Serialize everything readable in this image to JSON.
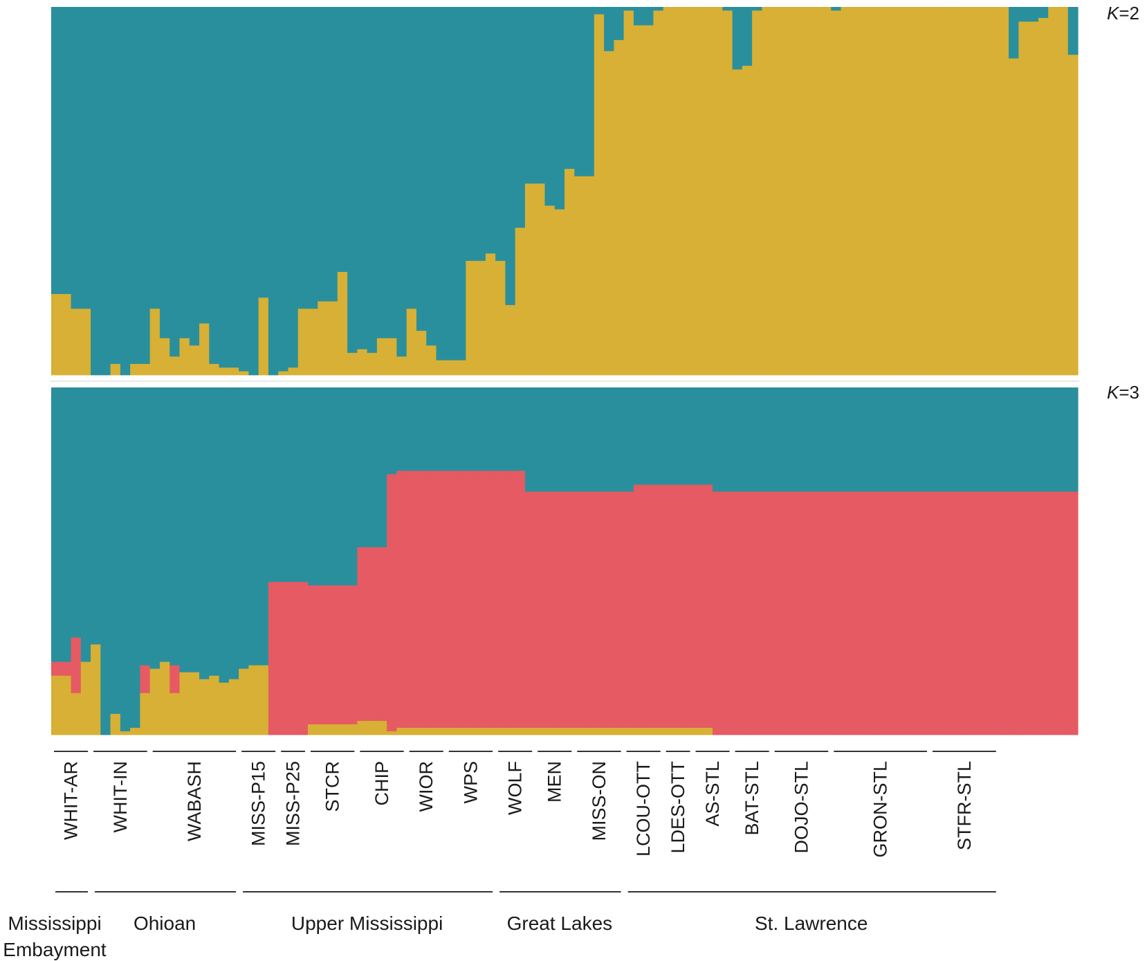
{
  "colors": {
    "cluster_blue": "#2a8f9c",
    "cluster_gold": "#d7b035",
    "cluster_red": "#e55a63",
    "separator": "#ffffff",
    "text": "#1a1a1a"
  },
  "chart_data": [
    {
      "type": "bar",
      "subtype": "stacked-proportion",
      "panel_label": {
        "prefix": "K",
        "suffix": "=2"
      },
      "ylim": [
        0,
        1
      ],
      "series": [
        {
          "color": "#2a8f9c",
          "values": [
            0.78,
            0.78,
            0.82,
            0.82,
            1.0,
            1.0,
            0.97,
            1.0,
            0.97,
            0.97,
            0.82,
            0.9,
            0.95,
            0.9,
            0.92,
            0.86,
            0.97,
            0.98,
            0.98,
            0.99,
            1.0,
            0.79,
            1.0,
            0.99,
            0.98,
            0.82,
            0.82,
            0.8,
            0.8,
            0.72,
            0.94,
            0.93,
            0.94,
            0.9,
            0.9,
            0.95,
            0.82,
            0.88,
            0.92,
            0.96,
            0.96,
            0.96,
            0.69,
            0.69,
            0.67,
            0.69,
            0.81,
            0.6,
            0.48,
            0.48,
            0.54,
            0.55,
            0.44,
            0.46,
            0.46,
            0.02,
            0.12,
            0.09,
            0.01,
            0.05,
            0.05,
            0.01,
            0.0,
            0.0,
            0.0,
            0.0,
            0.0,
            0.0,
            0.01,
            0.17,
            0.16,
            0.01,
            0.0,
            0.0,
            0.0,
            0.0,
            0.0,
            0.0,
            0.0,
            0.01,
            0.0,
            0.0,
            0.0,
            0.0,
            0.0,
            0.0,
            0.0,
            0.0,
            0.0,
            0.0,
            0.0,
            0.0,
            0.0,
            0.0,
            0.0,
            0.0,
            0.0,
            0.14,
            0.04,
            0.04,
            0.03,
            0.0,
            0.0,
            0.13
          ]
        },
        {
          "color": "#d7b035",
          "values": [
            0.22,
            0.22,
            0.18,
            0.18,
            0.0,
            0.0,
            0.03,
            0.0,
            0.03,
            0.03,
            0.18,
            0.1,
            0.05,
            0.1,
            0.08,
            0.14,
            0.03,
            0.02,
            0.02,
            0.01,
            0.0,
            0.21,
            0.0,
            0.01,
            0.02,
            0.18,
            0.18,
            0.2,
            0.2,
            0.28,
            0.06,
            0.07,
            0.06,
            0.1,
            0.1,
            0.05,
            0.18,
            0.12,
            0.08,
            0.04,
            0.04,
            0.04,
            0.31,
            0.31,
            0.33,
            0.31,
            0.19,
            0.4,
            0.52,
            0.52,
            0.46,
            0.45,
            0.56,
            0.54,
            0.54,
            0.98,
            0.88,
            0.91,
            0.99,
            0.95,
            0.95,
            0.99,
            1.0,
            1.0,
            1.0,
            1.0,
            1.0,
            1.0,
            0.99,
            0.83,
            0.84,
            0.99,
            1.0,
            1.0,
            1.0,
            1.0,
            1.0,
            1.0,
            1.0,
            0.99,
            1.0,
            1.0,
            1.0,
            1.0,
            1.0,
            1.0,
            1.0,
            1.0,
            1.0,
            1.0,
            1.0,
            1.0,
            1.0,
            1.0,
            1.0,
            1.0,
            1.0,
            0.86,
            0.96,
            0.96,
            0.97,
            1.0,
            1.0,
            0.87
          ]
        }
      ]
    },
    {
      "type": "bar",
      "subtype": "stacked-proportion",
      "panel_label": {
        "prefix": "K",
        "suffix": "=3"
      },
      "ylim": [
        0,
        1
      ],
      "series": [
        {
          "color": "#2a8f9c",
          "values": [
            0.79,
            0.79,
            0.72,
            0.79,
            0.74,
            1.0,
            0.94,
            0.99,
            0.98,
            0.8,
            0.81,
            0.79,
            0.8,
            0.82,
            0.82,
            0.84,
            0.83,
            0.85,
            0.84,
            0.81,
            0.8,
            0.8,
            0.56,
            0.56,
            0.56,
            0.56,
            0.57,
            0.57,
            0.57,
            0.57,
            0.57,
            0.46,
            0.46,
            0.46,
            0.25,
            0.24,
            0.24,
            0.24,
            0.24,
            0.24,
            0.24,
            0.24,
            0.24,
            0.24,
            0.24,
            0.24,
            0.24,
            0.24,
            0.3,
            0.3,
            0.3,
            0.3,
            0.3,
            0.3,
            0.3,
            0.3,
            0.3,
            0.3,
            0.3,
            0.28,
            0.28,
            0.28,
            0.28,
            0.28,
            0.28,
            0.28,
            0.28,
            0.3,
            0.3,
            0.3,
            0.3,
            0.3,
            0.3,
            0.3,
            0.3,
            0.3,
            0.3,
            0.3,
            0.3,
            0.3,
            0.3,
            0.3,
            0.3,
            0.3,
            0.3,
            0.3,
            0.3,
            0.3,
            0.3,
            0.3,
            0.3,
            0.3,
            0.3,
            0.3,
            0.3,
            0.3,
            0.3,
            0.3,
            0.3,
            0.3,
            0.3,
            0.3,
            0.3,
            0.3
          ]
        },
        {
          "color": "#e55a63",
          "values": [
            0.04,
            0.04,
            0.16,
            0.0,
            0.0,
            0.0,
            0.0,
            0.0,
            0.0,
            0.08,
            0.0,
            0.0,
            0.08,
            0.0,
            0.0,
            0.0,
            0.0,
            0.0,
            0.0,
            0.0,
            0.0,
            0.0,
            0.44,
            0.44,
            0.44,
            0.44,
            0.4,
            0.4,
            0.4,
            0.4,
            0.4,
            0.5,
            0.5,
            0.5,
            0.74,
            0.74,
            0.74,
            0.74,
            0.74,
            0.74,
            0.74,
            0.74,
            0.74,
            0.74,
            0.74,
            0.74,
            0.74,
            0.74,
            0.68,
            0.68,
            0.68,
            0.68,
            0.68,
            0.68,
            0.68,
            0.68,
            0.68,
            0.68,
            0.68,
            0.7,
            0.7,
            0.7,
            0.7,
            0.7,
            0.7,
            0.7,
            0.7,
            0.7,
            0.7,
            0.7,
            0.7,
            0.7,
            0.7,
            0.7,
            0.7,
            0.7,
            0.7,
            0.7,
            0.7,
            0.7,
            0.7,
            0.7,
            0.7,
            0.7,
            0.7,
            0.7,
            0.7,
            0.7,
            0.7,
            0.7,
            0.7,
            0.7,
            0.7,
            0.7,
            0.7,
            0.7,
            0.7,
            0.7,
            0.7,
            0.7,
            0.7,
            0.7,
            0.7,
            0.7
          ]
        },
        {
          "color": "#d7b035",
          "values": [
            0.17,
            0.17,
            0.12,
            0.21,
            0.26,
            0.0,
            0.06,
            0.01,
            0.02,
            0.12,
            0.19,
            0.21,
            0.12,
            0.18,
            0.18,
            0.16,
            0.17,
            0.15,
            0.16,
            0.19,
            0.2,
            0.2,
            0.0,
            0.0,
            0.0,
            0.0,
            0.03,
            0.03,
            0.03,
            0.03,
            0.03,
            0.04,
            0.04,
            0.04,
            0.01,
            0.02,
            0.02,
            0.02,
            0.02,
            0.02,
            0.02,
            0.02,
            0.02,
            0.02,
            0.02,
            0.02,
            0.02,
            0.02,
            0.02,
            0.02,
            0.02,
            0.02,
            0.02,
            0.02,
            0.02,
            0.02,
            0.02,
            0.02,
            0.02,
            0.02,
            0.02,
            0.02,
            0.02,
            0.02,
            0.02,
            0.02,
            0.02,
            0.0,
            0.0,
            0.0,
            0.0,
            0.0,
            0.0,
            0.0,
            0.0,
            0.0,
            0.0,
            0.0,
            0.0,
            0.0,
            0.0,
            0.0,
            0.0,
            0.0,
            0.0,
            0.0,
            0.0,
            0.0,
            0.0,
            0.0,
            0.0,
            0.0,
            0.0,
            0.0,
            0.0,
            0.0,
            0.0,
            0.0,
            0.0,
            0.0,
            0.0,
            0.0,
            0.0,
            0.0
          ]
        }
      ]
    }
  ],
  "populations": [
    {
      "label": "WHIT-AR",
      "start": 0,
      "end": 4
    },
    {
      "label": "WHIT-IN",
      "start": 4,
      "end": 10
    },
    {
      "label": "WABASH",
      "start": 10,
      "end": 19
    },
    {
      "label": "MISS-P15",
      "start": 19,
      "end": 23
    },
    {
      "label": "MISS-P25",
      "start": 23,
      "end": 26
    },
    {
      "label": "STCR",
      "start": 26,
      "end": 31
    },
    {
      "label": "CHIP",
      "start": 31,
      "end": 36
    },
    {
      "label": "WIOR",
      "start": 36,
      "end": 40
    },
    {
      "label": "WPS",
      "start": 40,
      "end": 45
    },
    {
      "label": "WOLF",
      "start": 45,
      "end": 49
    },
    {
      "label": "MEN",
      "start": 49,
      "end": 53
    },
    {
      "label": "MISS-ON",
      "start": 53,
      "end": 58
    },
    {
      "label": "LCOU-OTT",
      "start": 58,
      "end": 62
    },
    {
      "label": "LDES-OTT",
      "start": 62,
      "end": 65
    },
    {
      "label": "AS-STL",
      "start": 65,
      "end": 69
    },
    {
      "label": "BAT-STL",
      "start": 69,
      "end": 73
    },
    {
      "label": "DOJO-STL",
      "start": 73,
      "end": 79
    },
    {
      "label": "GRON-STL",
      "start": 79,
      "end": 89
    },
    {
      "label": "STFR-STL",
      "start": 89,
      "end": 96
    }
  ],
  "regions": [
    {
      "label": "Mississippi Embayment",
      "lines": [
        "Mississippi",
        "Embayment"
      ],
      "start": 0,
      "end": 4
    },
    {
      "label": "Ohioan",
      "lines": [
        "Ohioan"
      ],
      "start": 4,
      "end": 19
    },
    {
      "label": "Upper Mississippi",
      "lines": [
        "Upper Mississippi"
      ],
      "start": 19,
      "end": 45
    },
    {
      "label": "Great Lakes",
      "lines": [
        "Great Lakes"
      ],
      "start": 45,
      "end": 58
    },
    {
      "label": "St. Lawrence",
      "lines": [
        "St. Lawrence"
      ],
      "start": 58,
      "end": 96
    }
  ]
}
